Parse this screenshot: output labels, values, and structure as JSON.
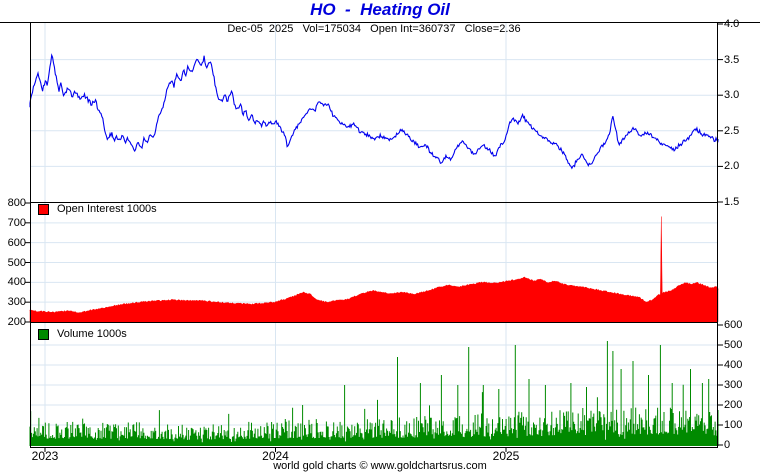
{
  "title": "HO  -  Heating Oil",
  "subtitle": "Dec-05  2025   Vol=175034   Open Int=360737   Close=2.36",
  "footer": "world gold charts © www.goldchartsrus.com",
  "legends": {
    "open_interest": "Open Interest  1000s",
    "volume": "Volume  1000s"
  },
  "colors": {
    "title_blue": "#0000DC",
    "price_line": "#0000EE",
    "oi_fill": "#FF0000",
    "volume_bar": "#008A00",
    "grid": "#d9e6f2",
    "frame": "#000000"
  },
  "axes": {
    "price_right": [
      "4.0",
      "3.5",
      "3.0",
      "2.5",
      "2.0",
      "1.5"
    ],
    "oi_left": [
      "800",
      "700",
      "600",
      "500",
      "400",
      "300",
      "200"
    ],
    "volume_right": [
      "600",
      "500",
      "400",
      "300",
      "200",
      "100",
      "0"
    ],
    "x_years": [
      "2023",
      "2024",
      "2025"
    ]
  },
  "chart_data": {
    "type": "line",
    "description": "3-panel daily futures chart: price line, open-interest area, volume bars",
    "x_range": [
      2022.93,
      2025.935
    ],
    "years": [
      2023,
      2024,
      2025
    ],
    "panels": [
      {
        "name": "price",
        "type": "line",
        "ylabel_side": "right",
        "ylim": [
          1.5,
          4.0
        ],
        "ticks": [
          4.0,
          3.5,
          3.0,
          2.5,
          2.0,
          1.5
        ],
        "last": 2.36,
        "keypoints": [
          [
            2022.93,
            2.82
          ],
          [
            2022.95,
            3.12
          ],
          [
            2022.97,
            3.3
          ],
          [
            2022.99,
            3.05
          ],
          [
            2023.0,
            3.22
          ],
          [
            2023.01,
            3.15
          ],
          [
            2023.02,
            3.38
          ],
          [
            2023.03,
            3.57
          ],
          [
            2023.05,
            3.22
          ],
          [
            2023.06,
            3.05
          ],
          [
            2023.07,
            3.18
          ],
          [
            2023.08,
            3.0
          ],
          [
            2023.1,
            3.1
          ],
          [
            2023.12,
            2.98
          ],
          [
            2023.13,
            3.06
          ],
          [
            2023.15,
            2.95
          ],
          [
            2023.17,
            3.0
          ],
          [
            2023.2,
            2.88
          ],
          [
            2023.22,
            2.93
          ],
          [
            2023.23,
            2.8
          ],
          [
            2023.25,
            2.7
          ],
          [
            2023.26,
            2.48
          ],
          [
            2023.27,
            2.38
          ],
          [
            2023.29,
            2.46
          ],
          [
            2023.3,
            2.36
          ],
          [
            2023.31,
            2.43
          ],
          [
            2023.32,
            2.35
          ],
          [
            2023.34,
            2.44
          ],
          [
            2023.35,
            2.33
          ],
          [
            2023.36,
            2.4
          ],
          [
            2023.38,
            2.28
          ],
          [
            2023.39,
            2.2
          ],
          [
            2023.4,
            2.34
          ],
          [
            2023.42,
            2.26
          ],
          [
            2023.43,
            2.4
          ],
          [
            2023.44,
            2.34
          ],
          [
            2023.46,
            2.46
          ],
          [
            2023.47,
            2.4
          ],
          [
            2023.48,
            2.52
          ],
          [
            2023.49,
            2.66
          ],
          [
            2023.51,
            2.82
          ],
          [
            2023.52,
            2.95
          ],
          [
            2023.53,
            3.1
          ],
          [
            2023.55,
            3.22
          ],
          [
            2023.56,
            3.12
          ],
          [
            2023.57,
            3.3
          ],
          [
            2023.59,
            3.2
          ],
          [
            2023.6,
            3.36
          ],
          [
            2023.61,
            3.28
          ],
          [
            2023.62,
            3.4
          ],
          [
            2023.64,
            3.33
          ],
          [
            2023.65,
            3.46
          ],
          [
            2023.66,
            3.52
          ],
          [
            2023.68,
            3.42
          ],
          [
            2023.69,
            3.55
          ],
          [
            2023.7,
            3.38
          ],
          [
            2023.72,
            3.48
          ],
          [
            2023.73,
            3.3
          ],
          [
            2023.74,
            3.12
          ],
          [
            2023.75,
            2.98
          ],
          [
            2023.77,
            2.88
          ],
          [
            2023.78,
            3.02
          ],
          [
            2023.79,
            2.92
          ],
          [
            2023.81,
            3.05
          ],
          [
            2023.82,
            2.9
          ],
          [
            2023.83,
            2.8
          ],
          [
            2023.85,
            2.88
          ],
          [
            2023.86,
            2.72
          ],
          [
            2023.87,
            2.8
          ],
          [
            2023.88,
            2.64
          ],
          [
            2023.9,
            2.72
          ],
          [
            2023.91,
            2.58
          ],
          [
            2023.92,
            2.66
          ],
          [
            2023.94,
            2.56
          ],
          [
            2023.95,
            2.64
          ],
          [
            2023.96,
            2.56
          ],
          [
            2023.98,
            2.62
          ],
          [
            2023.99,
            2.58
          ],
          [
            2024.0,
            2.64
          ],
          [
            2024.02,
            2.55
          ],
          [
            2024.04,
            2.45
          ],
          [
            2024.05,
            2.28
          ],
          [
            2024.07,
            2.42
          ],
          [
            2024.09,
            2.55
          ],
          [
            2024.11,
            2.62
          ],
          [
            2024.13,
            2.72
          ],
          [
            2024.15,
            2.8
          ],
          [
            2024.17,
            2.78
          ],
          [
            2024.19,
            2.92
          ],
          [
            2024.21,
            2.85
          ],
          [
            2024.23,
            2.88
          ],
          [
            2024.25,
            2.72
          ],
          [
            2024.28,
            2.6
          ],
          [
            2024.31,
            2.55
          ],
          [
            2024.34,
            2.6
          ],
          [
            2024.37,
            2.48
          ],
          [
            2024.4,
            2.44
          ],
          [
            2024.43,
            2.38
          ],
          [
            2024.46,
            2.44
          ],
          [
            2024.49,
            2.36
          ],
          [
            2024.52,
            2.44
          ],
          [
            2024.55,
            2.52
          ],
          [
            2024.57,
            2.44
          ],
          [
            2024.6,
            2.35
          ],
          [
            2024.62,
            2.28
          ],
          [
            2024.65,
            2.32
          ],
          [
            2024.67,
            2.2
          ],
          [
            2024.7,
            2.12
          ],
          [
            2024.72,
            2.05
          ],
          [
            2024.74,
            2.16
          ],
          [
            2024.76,
            2.1
          ],
          [
            2024.79,
            2.28
          ],
          [
            2024.81,
            2.37
          ],
          [
            2024.83,
            2.28
          ],
          [
            2024.86,
            2.16
          ],
          [
            2024.88,
            2.24
          ],
          [
            2024.9,
            2.3
          ],
          [
            2024.93,
            2.22
          ],
          [
            2024.95,
            2.13
          ],
          [
            2024.97,
            2.26
          ],
          [
            2024.99,
            2.34
          ],
          [
            2025.01,
            2.55
          ],
          [
            2025.03,
            2.68
          ],
          [
            2025.05,
            2.6
          ],
          [
            2025.07,
            2.72
          ],
          [
            2025.09,
            2.62
          ],
          [
            2025.11,
            2.55
          ],
          [
            2025.13,
            2.48
          ],
          [
            2025.16,
            2.41
          ],
          [
            2025.19,
            2.35
          ],
          [
            2025.22,
            2.3
          ],
          [
            2025.25,
            2.2
          ],
          [
            2025.27,
            2.05
          ],
          [
            2025.29,
            1.98
          ],
          [
            2025.31,
            2.1
          ],
          [
            2025.33,
            2.16
          ],
          [
            2025.35,
            2.05
          ],
          [
            2025.37,
            2.02
          ],
          [
            2025.39,
            2.15
          ],
          [
            2025.41,
            2.25
          ],
          [
            2025.43,
            2.34
          ],
          [
            2025.45,
            2.45
          ],
          [
            2025.462,
            2.74
          ],
          [
            2025.475,
            2.52
          ],
          [
            2025.49,
            2.3
          ],
          [
            2025.51,
            2.39
          ],
          [
            2025.54,
            2.5
          ],
          [
            2025.56,
            2.53
          ],
          [
            2025.58,
            2.44
          ],
          [
            2025.61,
            2.48
          ],
          [
            2025.64,
            2.4
          ],
          [
            2025.67,
            2.34
          ],
          [
            2025.7,
            2.3
          ],
          [
            2025.73,
            2.23
          ],
          [
            2025.76,
            2.32
          ],
          [
            2025.79,
            2.39
          ],
          [
            2025.82,
            2.53
          ],
          [
            2025.85,
            2.46
          ],
          [
            2025.88,
            2.42
          ],
          [
            2025.9,
            2.38
          ],
          [
            2025.935,
            2.36
          ]
        ]
      },
      {
        "name": "open_interest",
        "type": "area",
        "unit": "1000s",
        "ylabel_side": "left",
        "ylim": [
          200,
          800
        ],
        "ticks": [
          800,
          700,
          600,
          500,
          400,
          300,
          200
        ],
        "last": 360.737,
        "keypoints": [
          [
            2022.93,
            258
          ],
          [
            2023.0,
            252
          ],
          [
            2023.05,
            250
          ],
          [
            2023.1,
            256
          ],
          [
            2023.15,
            248
          ],
          [
            2023.2,
            260
          ],
          [
            2023.25,
            270
          ],
          [
            2023.32,
            286
          ],
          [
            2023.4,
            298
          ],
          [
            2023.45,
            305
          ],
          [
            2023.5,
            308
          ],
          [
            2023.55,
            312
          ],
          [
            2023.6,
            308
          ],
          [
            2023.65,
            310
          ],
          [
            2023.7,
            305
          ],
          [
            2023.75,
            300
          ],
          [
            2023.8,
            295
          ],
          [
            2023.85,
            292
          ],
          [
            2023.9,
            290
          ],
          [
            2023.95,
            295
          ],
          [
            2024.0,
            300
          ],
          [
            2024.08,
            330
          ],
          [
            2024.12,
            352
          ],
          [
            2024.15,
            340
          ],
          [
            2024.18,
            312
          ],
          [
            2024.22,
            300
          ],
          [
            2024.27,
            308
          ],
          [
            2024.32,
            318
          ],
          [
            2024.38,
            345
          ],
          [
            2024.42,
            358
          ],
          [
            2024.46,
            352
          ],
          [
            2024.5,
            342
          ],
          [
            2024.55,
            352
          ],
          [
            2024.6,
            340
          ],
          [
            2024.65,
            355
          ],
          [
            2024.7,
            372
          ],
          [
            2024.75,
            385
          ],
          [
            2024.8,
            378
          ],
          [
            2024.85,
            390
          ],
          [
            2024.9,
            400
          ],
          [
            2024.95,
            395
          ],
          [
            2025.0,
            405
          ],
          [
            2025.05,
            415
          ],
          [
            2025.08,
            425
          ],
          [
            2025.12,
            408
          ],
          [
            2025.15,
            415
          ],
          [
            2025.18,
            398
          ],
          [
            2025.22,
            408
          ],
          [
            2025.25,
            390
          ],
          [
            2025.3,
            380
          ],
          [
            2025.35,
            372
          ],
          [
            2025.4,
            362
          ],
          [
            2025.45,
            350
          ],
          [
            2025.5,
            340
          ],
          [
            2025.55,
            330
          ],
          [
            2025.58,
            322
          ],
          [
            2025.61,
            298
          ],
          [
            2025.64,
            315
          ],
          [
            2025.66,
            335
          ],
          [
            2025.69,
            350
          ],
          [
            2025.72,
            360
          ],
          [
            2025.75,
            385
          ],
          [
            2025.78,
            398
          ],
          [
            2025.8,
            392
          ],
          [
            2025.83,
            398
          ],
          [
            2025.86,
            385
          ],
          [
            2025.89,
            372
          ],
          [
            2025.91,
            378
          ],
          [
            2025.935,
            361
          ]
        ],
        "spikes": [
          [
            2025.672,
            732
          ]
        ]
      },
      {
        "name": "volume",
        "type": "bar",
        "unit": "1000s",
        "ylabel_side": "right",
        "ylim": [
          0,
          600
        ],
        "ticks": [
          600,
          500,
          400,
          300,
          200,
          100,
          0
        ],
        "last": 175.034,
        "envelope": [
          [
            2022.93,
            100
          ],
          [
            2023.3,
            105
          ],
          [
            2023.6,
            95
          ],
          [
            2023.63,
            75
          ],
          [
            2023.75,
            95
          ],
          [
            2024.0,
            110
          ],
          [
            2024.3,
            115
          ],
          [
            2024.5,
            120
          ],
          [
            2024.8,
            130
          ],
          [
            2025.0,
            145
          ],
          [
            2025.2,
            150
          ],
          [
            2025.4,
            170
          ],
          [
            2025.55,
            175
          ],
          [
            2025.7,
            170
          ],
          [
            2025.85,
            160
          ],
          [
            2025.935,
            150
          ]
        ],
        "spikes": [
          [
            2024.3,
            300
          ],
          [
            2024.53,
            440
          ],
          [
            2024.63,
            310
          ],
          [
            2024.72,
            350
          ],
          [
            2024.79,
            300
          ],
          [
            2024.84,
            490
          ],
          [
            2024.9,
            300
          ],
          [
            2024.97,
            280
          ],
          [
            2025.04,
            500
          ],
          [
            2025.1,
            330
          ],
          [
            2025.17,
            300
          ],
          [
            2025.28,
            310
          ],
          [
            2025.35,
            290
          ],
          [
            2025.44,
            520
          ],
          [
            2025.465,
            470
          ],
          [
            2025.5,
            380
          ],
          [
            2025.55,
            420
          ],
          [
            2025.62,
            350
          ],
          [
            2025.67,
            500
          ],
          [
            2025.72,
            310
          ],
          [
            2025.8,
            380
          ],
          [
            2025.85,
            310
          ],
          [
            2025.88,
            330
          ]
        ],
        "last_bar": 175
      }
    ]
  }
}
